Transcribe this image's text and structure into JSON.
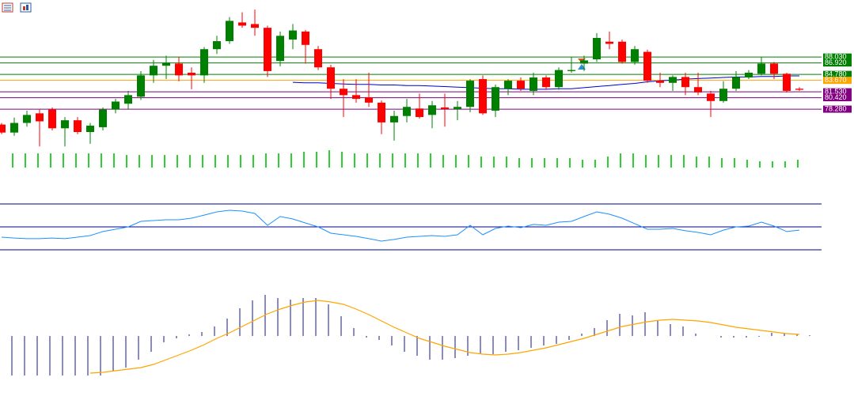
{
  "chart_data": [
    {
      "type": "candlestick",
      "up_color": "#008000",
      "down_color": "#ff0000",
      "ylim": [
        70.6,
        98.7
      ],
      "open": [
        75.4,
        73.9,
        75.7,
        77.5,
        78.2,
        74.7,
        76.2,
        74.0,
        74.9,
        78.2,
        79.3,
        80.6,
        84.6,
        86.4,
        86.8,
        85.1,
        84.6,
        89.5,
        91.0,
        94.5,
        94.2,
        93.5,
        87.3,
        91.3,
        92.8,
        89.5,
        86.1,
        82.1,
        80.9,
        80.5,
        79.5,
        75.8,
        77.0,
        78.4,
        77.2,
        78.6,
        78.3,
        78.7,
        83.9,
        78.0,
        82.1,
        83.6,
        81.7,
        84.2,
        82.4,
        85.4,
        86.8,
        87.6,
        90.9,
        90.9,
        87.1,
        89.0,
        83.6,
        83.2,
        84.3,
        82.4,
        81.2,
        79.8,
        82.1,
        84.2,
        84.9,
        86.8,
        84.9,
        82.1
      ],
      "high": [
        75.7,
        76.7,
        78.0,
        78.2,
        78.6,
        76.8,
        76.8,
        75.7,
        78.6,
        80.2,
        81.7,
        85.4,
        87.5,
        88.3,
        88.0,
        86.1,
        89.9,
        92.0,
        95.5,
        96.4,
        96.9,
        93.9,
        92.8,
        94.2,
        93.1,
        90.1,
        86.6,
        83.9,
        83.9,
        85.1,
        79.9,
        78.0,
        80.2,
        81.2,
        79.8,
        81.2,
        79.8,
        83.9,
        84.6,
        82.9,
        83.9,
        84.2,
        85.1,
        84.6,
        86.1,
        88.0,
        88.3,
        92.5,
        92.8,
        91.3,
        90.1,
        89.4,
        85.1,
        84.6,
        85.1,
        85.1,
        81.7,
        83.5,
        85.4,
        85.6,
        88.0,
        87.1,
        85.1,
        82.4
      ],
      "low": [
        73.6,
        73.3,
        75.0,
        71.3,
        74.3,
        71.3,
        73.6,
        71.8,
        74.3,
        77.5,
        78.2,
        80.0,
        83.2,
        83.9,
        83.5,
        82.0,
        83.2,
        88.6,
        90.5,
        93.5,
        92.0,
        84.3,
        86.3,
        89.5,
        86.8,
        85.6,
        80.2,
        76.8,
        79.5,
        78.7,
        73.6,
        72.4,
        75.8,
        76.5,
        74.7,
        75.0,
        76.2,
        77.7,
        77.2,
        76.8,
        80.9,
        81.7,
        80.9,
        81.9,
        81.9,
        85.1,
        85.4,
        87.1,
        89.5,
        86.8,
        86.6,
        83.2,
        82.4,
        81.7,
        80.9,
        80.9,
        76.8,
        79.5,
        81.7,
        83.9,
        84.6,
        83.9,
        81.4,
        81.7
      ],
      "close": [
        73.9,
        75.7,
        77.2,
        76.0,
        74.7,
        76.2,
        74.0,
        75.2,
        78.2,
        79.7,
        80.9,
        84.6,
        86.4,
        87.0,
        84.6,
        84.6,
        89.5,
        91.0,
        94.8,
        93.9,
        93.5,
        85.4,
        92.0,
        93.0,
        90.3,
        86.1,
        82.1,
        80.9,
        80.2,
        79.5,
        75.8,
        77.0,
        78.7,
        76.8,
        79.0,
        78.3,
        78.7,
        83.6,
        77.5,
        82.4,
        83.6,
        82.1,
        84.2,
        82.4,
        85.6,
        85.6,
        87.4,
        91.6,
        90.5,
        87.1,
        89.5,
        83.6,
        83.2,
        84.3,
        82.4,
        81.4,
        79.8,
        82.1,
        84.3,
        85.1,
        86.8,
        84.9,
        81.7,
        81.9
      ],
      "ma": {
        "color": "#0000cd",
        "values": [
          null,
          null,
          null,
          null,
          null,
          null,
          null,
          null,
          null,
          null,
          null,
          null,
          null,
          null,
          null,
          null,
          null,
          null,
          null,
          null,
          null,
          null,
          null,
          83.3,
          83.2,
          83.2,
          83.1,
          83.0,
          82.9,
          82.9,
          82.8,
          82.8,
          82.7,
          82.7,
          82.6,
          82.5,
          82.4,
          82.3,
          82.2,
          82.1,
          82.1,
          82.0,
          82.0,
          82.0,
          82.1,
          82.1,
          82.3,
          82.5,
          82.7,
          82.9,
          83.1,
          83.4,
          83.6,
          83.7,
          83.9,
          84.0,
          84.1,
          84.2,
          84.3,
          84.3,
          84.4,
          84.4,
          84.5,
          84.5
        ]
      },
      "levels": [
        {
          "value": 88.03,
          "label": "88.030",
          "color": "#008000"
        },
        {
          "value": 86.92,
          "label": "86.920",
          "color": "#008000"
        },
        {
          "value": 84.78,
          "label": "84.780",
          "color": "#008000"
        },
        {
          "value": 83.67,
          "label": "83.670",
          "color": "#ffa500"
        },
        {
          "value": 81.53,
          "label": "81.530",
          "color": "#800080"
        },
        {
          "value": 80.42,
          "label": "80.420",
          "color": "#800080"
        },
        {
          "value": 78.28,
          "label": "78.280",
          "color": "#800080"
        }
      ]
    },
    {
      "type": "bar",
      "color": "#32cd32",
      "ylim": [
        0,
        25
      ],
      "values": [
        18,
        18,
        18,
        18,
        18,
        18,
        18,
        18,
        18,
        16,
        16,
        16,
        16,
        16,
        16,
        16,
        16,
        16,
        16,
        16,
        18,
        18,
        18,
        20,
        20,
        22,
        20,
        18,
        18,
        18,
        18,
        18,
        18,
        18,
        16,
        16,
        16,
        14,
        14,
        14,
        12,
        12,
        12,
        12,
        12,
        10,
        10,
        14,
        18,
        18,
        16,
        16,
        16,
        16,
        14,
        14,
        12,
        12,
        10,
        8,
        8,
        8,
        10,
        null
      ]
    },
    {
      "type": "line",
      "color": "#1e90ff",
      "level_color": "#00008b",
      "ylim": [
        23.8,
        75.5
      ],
      "levels": [
        70,
        50,
        30
      ],
      "values": [
        41.0,
        40.3,
        39.7,
        39.7,
        40.3,
        39.7,
        41.0,
        42.4,
        45.9,
        47.9,
        50,
        54.8,
        55.5,
        56.2,
        56.2,
        57.6,
        60.3,
        63.1,
        64.5,
        63.8,
        61.7,
        51.4,
        59.0,
        56.9,
        53.4,
        50,
        44.5,
        43.1,
        41.7,
        39.7,
        37.6,
        39.0,
        41.0,
        41.7,
        42.4,
        41.7,
        43.1,
        51.4,
        43.1,
        48.6,
        50.7,
        49.3,
        52.1,
        51.4,
        54.1,
        54.8,
        59.0,
        63.1,
        61.0,
        57.6,
        52.8,
        47.9,
        47.9,
        48.6,
        46.6,
        45.2,
        43.1,
        47.2,
        50,
        50.7,
        54.1,
        50.7,
        45.9,
        47.2
      ]
    },
    {
      "type": "macd",
      "color": "#191970",
      "signal_color": "#ffa500",
      "ylim": [
        -5,
        5.5
      ],
      "values": [
        -5,
        -5,
        -5,
        -5,
        -5,
        -5,
        -5,
        -5,
        -4.5,
        -4,
        -3,
        -2,
        -0.8,
        -0.3,
        0.2,
        0.5,
        1.2,
        2.2,
        3.5,
        4.5,
        5.2,
        4.8,
        4.6,
        4.8,
        4.8,
        4.0,
        2.5,
        1.0,
        -0.2,
        -0.5,
        -1.2,
        -2.0,
        -2.5,
        -3.0,
        -3.0,
        -2.8,
        -2.5,
        -2.2,
        -2.3,
        -2.0,
        -1.8,
        -1.5,
        -1.2,
        -1.0,
        -0.5,
        0.3,
        1.0,
        2.0,
        2.8,
        2.6,
        3.0,
        2.0,
        1.5,
        1.2,
        0.3,
        0,
        -0.2,
        -0.2,
        -0.2,
        -0.1,
        0.4,
        0.3,
        0.2,
        0.1
      ],
      "signal": [
        null,
        null,
        null,
        null,
        null,
        null,
        null,
        -4.7,
        -4.6,
        -4.4,
        -4.2,
        -4.0,
        -3.6,
        -3.0,
        -2.4,
        -1.8,
        -1.1,
        -0.3,
        0.4,
        1.2,
        2.0,
        2.8,
        3.4,
        3.9,
        4.3,
        4.5,
        4.3,
        4.0,
        3.4,
        2.7,
        1.9,
        1.1,
        0.4,
        -0.3,
        -0.8,
        -1.3,
        -1.7,
        -2.1,
        -2.3,
        -2.4,
        -2.3,
        -2.1,
        -1.8,
        -1.5,
        -1.1,
        -0.7,
        -0.3,
        0.2,
        0.7,
        1.2,
        1.5,
        1.8,
        2.0,
        2.1,
        2.0,
        1.9,
        1.7,
        1.4,
        1.1,
        0.9,
        0.7,
        0.5,
        0.3,
        0.2
      ]
    }
  ]
}
